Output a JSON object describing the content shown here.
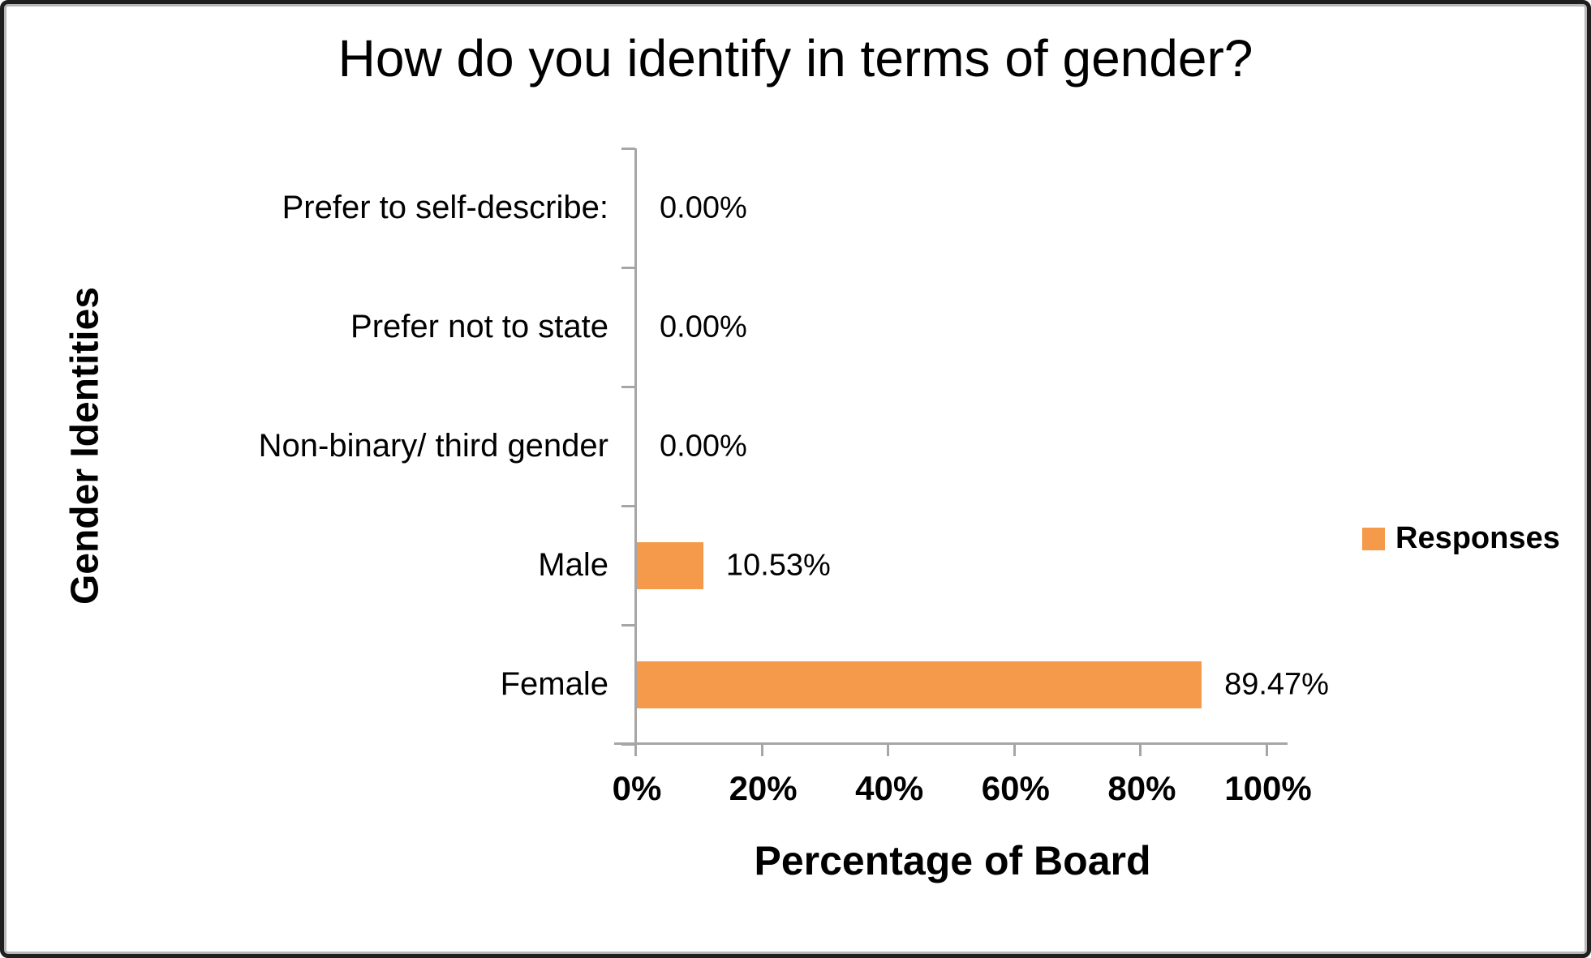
{
  "chart_data": {
    "type": "bar",
    "orientation": "horizontal",
    "title": "How do you identify in terms of gender?",
    "xlabel": "Percentage of Board",
    "ylabel": "Gender Identities",
    "categories": [
      "Prefer to self-describe:",
      "Prefer not to state",
      "Non-binary/ third gender",
      "Male",
      "Female"
    ],
    "series": [
      {
        "name": "Responses",
        "values": [
          0,
          0,
          0,
          10.53,
          89.47
        ],
        "value_labels": [
          "0.00%",
          "0.00%",
          "0.00%",
          "10.53%",
          "89.47%"
        ]
      }
    ],
    "xlim": [
      0,
      100
    ],
    "x_tick_labels": [
      "0%",
      "20%",
      "40%",
      "60%",
      "80%",
      "100%"
    ],
    "grid": false,
    "legend": {
      "position": "right",
      "entries": [
        {
          "label": "Responses",
          "color": "#F5994B"
        }
      ]
    },
    "colors": {
      "bar": "#F5994B",
      "axis": "#A6A6A6",
      "text": "#000000"
    }
  }
}
